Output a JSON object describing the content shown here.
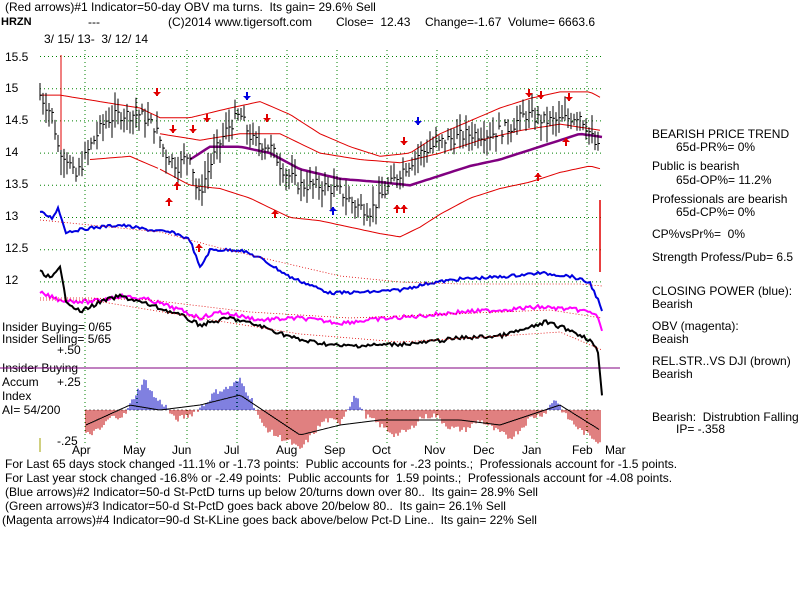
{
  "header": {
    "line1": "(Red arrows)#1 Indicator=50-day OBV ma turns.  Its gain= 29.6% Sell",
    "ticker": "HRZN",
    "dashes": "---",
    "copyright": "(C)2014 www.tigersoft.com",
    "close": "Close=  12.43",
    "change": "Change=-1.67",
    "volume": "Volume= 6663.6",
    "date_range": "3/ 15/ 13-  3/ 12/ 14"
  },
  "price_axis": {
    "labels": [
      "15.5",
      "15",
      "14.5",
      "14",
      "13.5",
      "13",
      "12.5",
      "12"
    ],
    "values": [
      15.5,
      15,
      14.5,
      14,
      13.5,
      13,
      12.5,
      12
    ]
  },
  "months": [
    "Apr",
    "May",
    "Jun",
    "Jul",
    "Aug",
    "Sep",
    "Oct",
    "Nov",
    "Dec",
    "Jan",
    "Feb",
    "Mar"
  ],
  "left_labels": {
    "insider_buying_ratio": "Insider Buying= 0/65",
    "insider_selling_ratio": "Insider Selling= 5/65",
    "plus50": "+.50",
    "insider_buying": "Insider Buying",
    "accum": "Accum",
    "plus25": "+.25",
    "index": "Index",
    "ai": "AI= 54/200",
    "minus25": "-.25"
  },
  "right_panel": {
    "r1": "BEARISH PRICE TREND",
    "r2": "65d-PR%= 0%",
    "r3": "Public is bearish",
    "r4": "65d-OP%= 11.2%",
    "r5": "Professionals are bearish",
    "r6": "65d-CP%= 0%",
    "r7": "CP%vsPr%=  0%",
    "r8": "Strength Profess/Pub= 6.5",
    "r9": "CLOSING POWER (blue):",
    "r10": "Bearish",
    "r11": "OBV (magenta):",
    "r12": "Beaish",
    "r13": "REL.STR..VS DJI (brown)",
    "r14": "Bearish",
    "r15": "Bearish:  Distrubtion Falling",
    "r16": "IP= -.358"
  },
  "footer": {
    "f1": "For Last 65 days stock changed -11.1% or -1.73 points:  Public accounts for -.23 points.;  Professionals account for -1.5 points.",
    "f2": "For Last year stock changed -16.8% or -2.49 points:  Public accounts for  1.59 points.;  Professionals account for -4.08 points.",
    "f3": "(Blue arrows)#2 Indicator=50-d St-PctD turns up below 20/turns down over 80..  Its gain= 28.9% Sell",
    "f4": "(Green arrows)#3 Indicator=50-d St-PctD goes back above 20/below 80..  Its gain= 26.1% Sell",
    "f5": "(Magenta arrows)#4 Indicator=90-d St-KLine goes back above/below Pct-D Line..  Its gain= 22% Sell"
  },
  "colors": {
    "price": "#000000",
    "band": "#e00000",
    "ma": "#800080",
    "closing_power": "#0000e0",
    "obv": "#ff00ff",
    "rel_str": "#000000",
    "accum_pos": "#0000c0",
    "accum_neg": "#c00000",
    "grid": "#008000"
  },
  "chart_data": {
    "type": "line",
    "title": "HRZN",
    "x_range": [
      "3/15/13",
      "3/12/14"
    ],
    "categories": [
      "Apr",
      "May",
      "Jun",
      "Jul",
      "Aug",
      "Sep",
      "Oct",
      "Nov",
      "Dec",
      "Jan",
      "Feb",
      "Mar"
    ],
    "ylim": [
      12,
      15.5
    ],
    "series": [
      {
        "name": "Close",
        "values": [
          14.6,
          14.4,
          13.8,
          14.5,
          13.7,
          13.3,
          13.1,
          13.9,
          14.2,
          14.3,
          14.6,
          12.43
        ]
      },
      {
        "name": "50-day ma",
        "values": [
          14.3,
          14.2,
          14.0,
          14.1,
          14.0,
          13.7,
          13.5,
          13.6,
          13.9,
          14.1,
          14.3,
          14.2
        ]
      }
    ],
    "annotations": {
      "close": 12.43,
      "change": -1.67,
      "volume": 6663.6
    }
  }
}
